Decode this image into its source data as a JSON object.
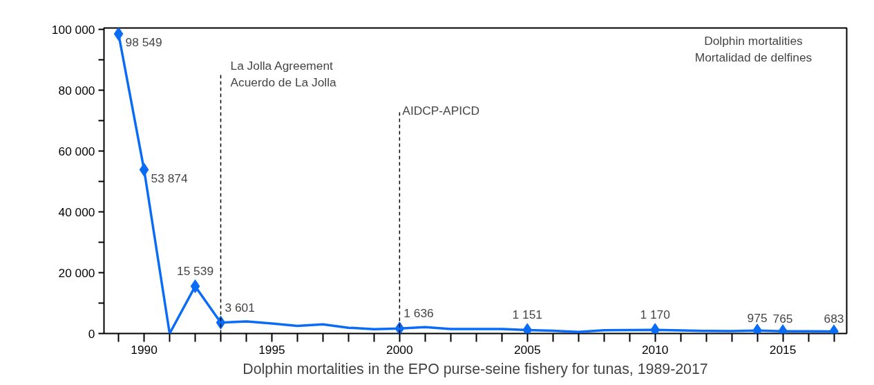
{
  "chart_data": {
    "type": "line",
    "title": "Dolphin mortalities in the EPO purse-seine fishery for tunas, 1989-2017",
    "annotations": [
      "Dolphin mortalities\nMortalidad de delfines"
    ],
    "series": [
      {
        "color": "#0a6cf5",
        "marker": "none",
        "x": [
          1989,
          1990,
          1991,
          1992,
          1993,
          1994,
          1995,
          1996,
          1997,
          1998,
          1999,
          2000,
          2001,
          2002,
          2003,
          2004,
          2005,
          2006,
          2007,
          2008,
          2009,
          2010,
          2011,
          2012,
          2013,
          2014,
          2015,
          2016,
          2017
        ],
        "values": [
          98549,
          53874,
          0,
          15539,
          3601,
          4000,
          3300,
          2500,
          3000,
          1900,
          1400,
          1636,
          2100,
          1500,
          1500,
          1450,
          1151,
          900,
          500,
          1100,
          1150,
          1170,
          1000,
          850,
          800,
          975,
          765,
          750,
          683
        ]
      },
      {
        "type": "scatter",
        "color": "#0a6cf5",
        "marker": "diamond",
        "x": [
          1989,
          1990,
          1992,
          1993,
          2000,
          2005,
          2010,
          2014,
          2015,
          2017
        ],
        "values": [
          98549,
          53874,
          15539,
          3601,
          1636,
          1151,
          1170,
          975,
          765,
          683
        ],
        "value_labels": [
          "98 549",
          "53 874",
          "15 539",
          "3 601",
          "1 636",
          "1 151",
          "1 170",
          "975",
          "765",
          "683"
        ]
      }
    ],
    "xlim": [
      1988.43,
      2017.5
    ],
    "xticks": [
      {
        "value": 1989,
        "label": null
      },
      1990,
      {
        "value": 1991,
        "label": null
      },
      {
        "value": 1992,
        "label": null
      },
      {
        "value": 1993,
        "label": null
      },
      {
        "value": 1994,
        "label": null
      },
      1995,
      {
        "value": 1996,
        "label": null
      },
      {
        "value": 1997,
        "label": null
      },
      {
        "value": 1998,
        "label": null
      },
      {
        "value": 1999,
        "label": null
      },
      2000,
      {
        "value": 2001,
        "label": null
      },
      {
        "value": 2002,
        "label": null
      },
      {
        "value": 2003,
        "label": null
      },
      {
        "value": 2004,
        "label": null
      },
      2005,
      {
        "value": 2006,
        "label": null
      },
      {
        "value": 2007,
        "label": null
      },
      {
        "value": 2008,
        "label": null
      },
      {
        "value": 2009,
        "label": null
      },
      2010,
      {
        "value": 2011,
        "label": null
      },
      {
        "value": 2012,
        "label": null
      },
      {
        "value": 2013,
        "label": null
      },
      {
        "value": 2014,
        "label": null
      },
      2015,
      {
        "value": 2016,
        "label": null
      },
      {
        "value": 2017,
        "label": null
      }
    ],
    "ylim": [
      0,
      100500
    ],
    "yticks": [
      {
        "value": 0,
        "label": "0"
      },
      {
        "value": 10000,
        "label": null
      },
      {
        "value": 20000,
        "label": "20 000"
      },
      {
        "value": 30000,
        "label": null
      },
      {
        "value": 40000,
        "label": "40 000"
      },
      {
        "value": 50000,
        "label": null
      },
      {
        "value": 60000,
        "label": "60 000"
      },
      {
        "value": 70000,
        "label": null
      },
      {
        "value": 80000,
        "label": "80 000"
      },
      {
        "value": 90000,
        "label": null
      },
      {
        "value": 100000,
        "label": "100 000"
      }
    ],
    "ref_lines": [
      {
        "axis": "x",
        "value": 1993,
        "label": "La Jolla Agreement\nAcuerdo de La Jolla",
        "color": "#000000",
        "line_style": "dashed"
      },
      {
        "axis": "x",
        "value": 2000,
        "label": "AIDCP-APICD",
        "color": "#000000",
        "line_style": "dashed"
      }
    ],
    "grid": false
  }
}
